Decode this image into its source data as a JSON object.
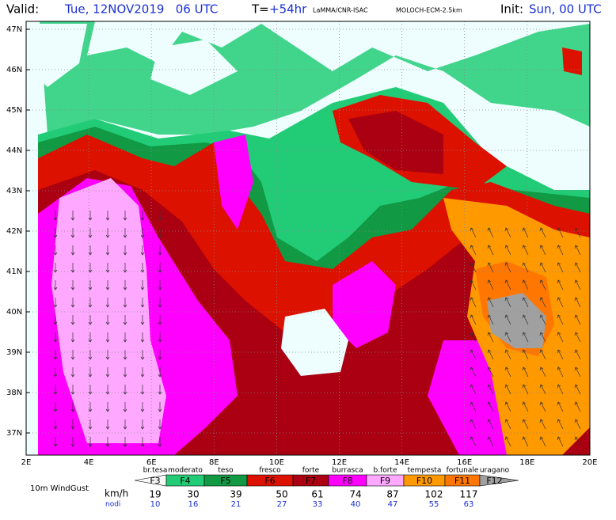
{
  "header": {
    "valid_label": "Valid:",
    "valid_time": "Tue, 12NOV2019   06 UTC",
    "lead_label": "T=",
    "lead": "+54hr",
    "source": "LaMMA/CNR-ISAC",
    "model": "MOLOCH-ECM-2.5km",
    "init_label": "Init:",
    "init_time": "Sun, 00 UTC"
  },
  "map": {
    "lat_labels": [
      "47N",
      "46N",
      "45N",
      "44N",
      "43N",
      "42N",
      "41N",
      "40N",
      "39N",
      "38N",
      "37N"
    ],
    "lon_labels": [
      "2E",
      "4E",
      "6E",
      "8E",
      "10E",
      "12E",
      "14E",
      "16E",
      "18E",
      "20E"
    ]
  },
  "legend": {
    "field": "10m WindGust",
    "unit_kmh": "km/h",
    "unit_knots": "nodi",
    "classes": [
      {
        "name": "br.tesa",
        "code": "F3"
      },
      {
        "name": "moderato",
        "code": "F4"
      },
      {
        "name": "teso",
        "code": "F5"
      },
      {
        "name": "fresco",
        "code": "F6"
      },
      {
        "name": "forte",
        "code": "F7"
      },
      {
        "name": "burrasca",
        "code": "F8"
      },
      {
        "name": "b.forte",
        "code": "F9"
      },
      {
        "name": "tempesta",
        "code": "F10"
      },
      {
        "name": "fortunale",
        "code": "F11"
      },
      {
        "name": "uragano",
        "code": "F12"
      }
    ],
    "kmh": [
      19,
      30,
      39,
      50,
      61,
      74,
      87,
      102,
      117
    ],
    "knots": [
      10,
      16,
      21,
      27,
      33,
      40,
      47,
      55,
      63
    ]
  }
}
